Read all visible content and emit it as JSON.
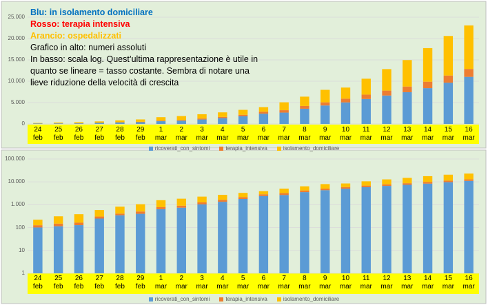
{
  "chart_data": [
    {
      "type": "bar",
      "stacked": true,
      "annotations": [
        {
          "text": "Blu: in isolamento domiciliare",
          "color": "#0070c0",
          "bold": true
        },
        {
          "text": "Rosso: terapia intensiva",
          "color": "#ff0000",
          "bold": true
        },
        {
          "text": "Arancio: ospedalizzati",
          "color": "#ffc000",
          "bold": true
        },
        {
          "text": "Grafico in alto: numeri assoluti",
          "color": "#000000",
          "bold": false
        },
        {
          "text": "In basso: scala log. Quest’ultima rappresentazione è utile in quanto se lineare = tasso costante. Sembra di notare una lieve riduzione della velocità di crescita",
          "color": "#000000",
          "bold": false
        }
      ],
      "categories": [
        "24 feb",
        "25 feb",
        "26 feb",
        "27 feb",
        "28 feb",
        "29 feb",
        "1 mar",
        "2 mar",
        "3 mar",
        "4 mar",
        "5 mar",
        "6 mar",
        "7 mar",
        "8 mar",
        "9 mar",
        "10 mar",
        "11 mar",
        "12 mar",
        "13 mar",
        "14 mar",
        "15 mar",
        "16 mar"
      ],
      "series": [
        {
          "name": "ricoverati_con_sintomi",
          "color": "#5b9bd5",
          "values": [
            101,
            114,
            128,
            248,
            345,
            401,
            639,
            742,
            1034,
            1346,
            1790,
            2394,
            2651,
            3557,
            4316,
            5038,
            5838,
            6650,
            7426,
            8372,
            9663,
            11025
          ]
        },
        {
          "name": "terapia_intensiva",
          "color": "#ed7d31",
          "values": [
            26,
            35,
            36,
            56,
            64,
            105,
            140,
            166,
            229,
            295,
            351,
            462,
            567,
            650,
            733,
            877,
            1028,
            1153,
            1328,
            1518,
            1672,
            1851
          ]
        },
        {
          "name": "isolamento_domiciliare",
          "color": "#ffc000",
          "values": [
            94,
            162,
            221,
            284,
            412,
            543,
            798,
            927,
            1000,
            1065,
            1155,
            1060,
            1843,
            2180,
            2936,
            2599,
            3724,
            5036,
            6201,
            7860,
            9268,
            10197
          ]
        }
      ],
      "log_scale": false,
      "grid": true,
      "legend": "bottom",
      "ylim": [
        0,
        25000
      ],
      "yticks": [
        0,
        {
          "value": 5000,
          "label": "5.000"
        },
        {
          "value": 10000,
          "label": "10.000"
        },
        {
          "value": 15000,
          "label": "15.000"
        },
        {
          "value": 20000,
          "label": "20.000"
        },
        {
          "value": 25000,
          "label": "25.000"
        }
      ]
    },
    {
      "type": "bar",
      "stacked": true,
      "categories": [
        "24 feb",
        "25 feb",
        "26 feb",
        "27 feb",
        "28 feb",
        "29 feb",
        "1 mar",
        "2 mar",
        "3 mar",
        "4 mar",
        "5 mar",
        "6 mar",
        "7 mar",
        "8 mar",
        "9 mar",
        "10 mar",
        "11 mar",
        "12 mar",
        "13 mar",
        "14 mar",
        "15 mar",
        "16 mar"
      ],
      "series": [
        {
          "name": "ricoverati_con_sintomi",
          "color": "#5b9bd5",
          "values": [
            101,
            114,
            128,
            248,
            345,
            401,
            639,
            742,
            1034,
            1346,
            1790,
            2394,
            2651,
            3557,
            4316,
            5038,
            5838,
            6650,
            7426,
            8372,
            9663,
            11025
          ]
        },
        {
          "name": "terapia_intensiva",
          "color": "#ed7d31",
          "values": [
            26,
            35,
            36,
            56,
            64,
            105,
            140,
            166,
            229,
            295,
            351,
            462,
            567,
            650,
            733,
            877,
            1028,
            1153,
            1328,
            1518,
            1672,
            1851
          ]
        },
        {
          "name": "isolamento_domiciliare",
          "color": "#ffc000",
          "values": [
            94,
            162,
            221,
            284,
            412,
            543,
            798,
            927,
            1000,
            1065,
            1155,
            1060,
            1843,
            2180,
            2936,
            2599,
            3724,
            5036,
            6201,
            7860,
            9268,
            10197
          ]
        }
      ],
      "log_scale": true,
      "grid": true,
      "legend": "bottom",
      "ylim": [
        1,
        100000
      ],
      "yticks": [
        1,
        10,
        100,
        {
          "value": 1000,
          "label": "1.000"
        },
        {
          "value": 10000,
          "label": "10.000"
        },
        {
          "value": 100000,
          "label": "100.000"
        }
      ]
    }
  ]
}
